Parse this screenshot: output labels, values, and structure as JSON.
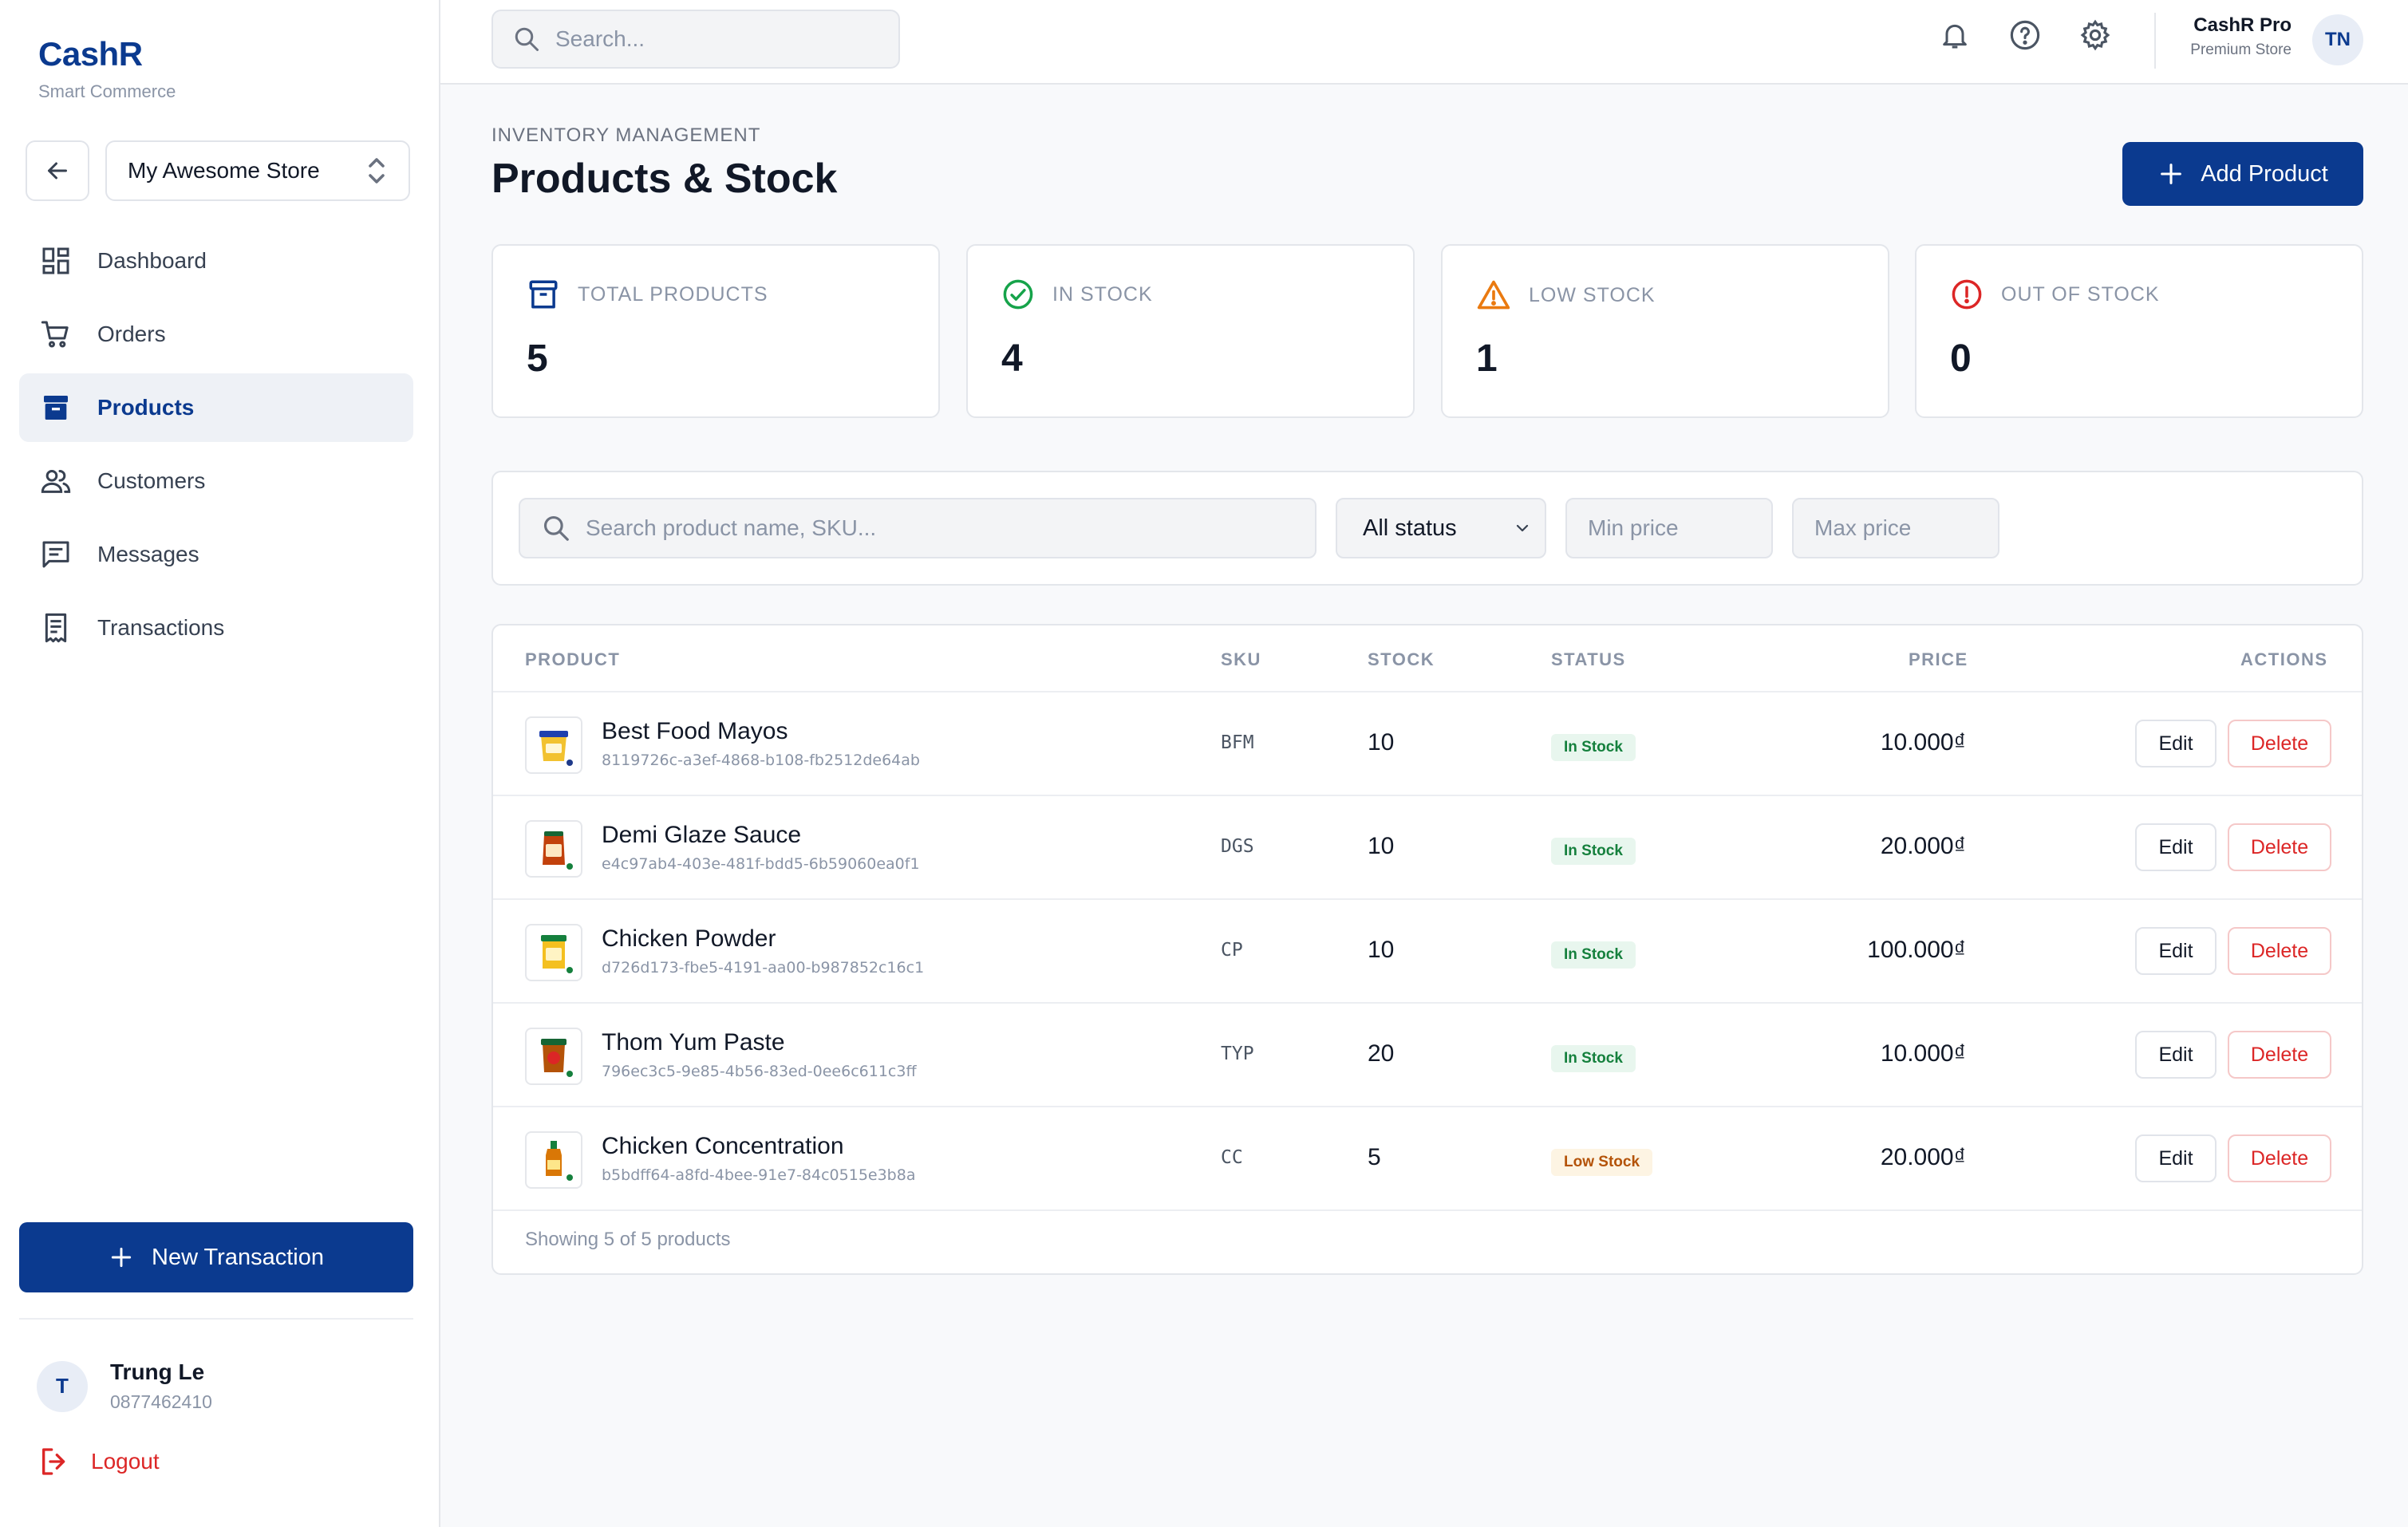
{
  "brand": {
    "name": "CashR",
    "tagline": "Smart Commerce"
  },
  "store_selector": {
    "value": "My Awesome Store"
  },
  "nav": [
    {
      "label": "Dashboard",
      "icon": "dashboard-icon",
      "active": false
    },
    {
      "label": "Orders",
      "icon": "cart-icon",
      "active": false
    },
    {
      "label": "Products",
      "icon": "archive-icon",
      "active": true
    },
    {
      "label": "Customers",
      "icon": "users-icon",
      "active": false
    },
    {
      "label": "Messages",
      "icon": "message-icon",
      "active": false
    },
    {
      "label": "Transactions",
      "icon": "receipt-icon",
      "active": false
    }
  ],
  "new_transaction_label": "New Transaction",
  "user": {
    "initial": "T",
    "name": "Trung Le",
    "phone": "0877462410"
  },
  "logout_label": "Logout",
  "topbar": {
    "search_placeholder": "Search...",
    "account_name": "CashR Pro",
    "account_plan": "Premium Store",
    "avatar_initials": "TN"
  },
  "page": {
    "eyebrow": "INVENTORY MANAGEMENT",
    "title": "Products & Stock",
    "add_label": "Add Product"
  },
  "stats": [
    {
      "label": "TOTAL PRODUCTS",
      "value": "5",
      "icon": "archive-icon",
      "color": "#0b3a8f"
    },
    {
      "label": "IN STOCK",
      "value": "4",
      "icon": "check-circle-icon",
      "color": "#16a34a"
    },
    {
      "label": "LOW STOCK",
      "value": "1",
      "icon": "warning-icon",
      "color": "#ea7a10"
    },
    {
      "label": "OUT OF STOCK",
      "value": "0",
      "icon": "alert-circle-icon",
      "color": "#dc2626"
    }
  ],
  "filters": {
    "search_placeholder": "Search product name, SKU...",
    "status_value": "All status",
    "min_placeholder": "Min price",
    "max_placeholder": "Max price"
  },
  "table": {
    "headers": {
      "product": "PRODUCT",
      "sku": "SKU",
      "stock": "STOCK",
      "status": "STATUS",
      "price": "PRICE",
      "actions": "ACTIONS"
    },
    "rows": [
      {
        "name": "Best Food Mayos",
        "id": "8119726c-a3ef-4868-b108-fb2512de64ab",
        "sku": "BFM",
        "stock": "10",
        "status": "In Stock",
        "status_kind": "in",
        "price": "10.000₫"
      },
      {
        "name": "Demi Glaze Sauce",
        "id": "e4c97ab4-403e-481f-bdd5-6b59060ea0f1",
        "sku": "DGS",
        "stock": "10",
        "status": "In Stock",
        "status_kind": "in",
        "price": "20.000₫"
      },
      {
        "name": "Chicken Powder",
        "id": "d726d173-fbe5-4191-aa00-b987852c16c1",
        "sku": "CP",
        "stock": "10",
        "status": "In Stock",
        "status_kind": "in",
        "price": "100.000₫"
      },
      {
        "name": "Thom Yum Paste",
        "id": "796ec3c5-9e85-4b56-83ed-0ee6c611c3ff",
        "sku": "TYP",
        "stock": "20",
        "status": "In Stock",
        "status_kind": "in",
        "price": "10.000₫"
      },
      {
        "name": "Chicken Concentration",
        "id": "b5bdff64-a8fd-4bee-91e7-84c0515e3b8a",
        "sku": "CC",
        "stock": "5",
        "status": "Low Stock",
        "status_kind": "low",
        "price": "20.000₫"
      }
    ],
    "edit_label": "Edit",
    "delete_label": "Delete",
    "footer": "Showing 5 of 5 products"
  }
}
